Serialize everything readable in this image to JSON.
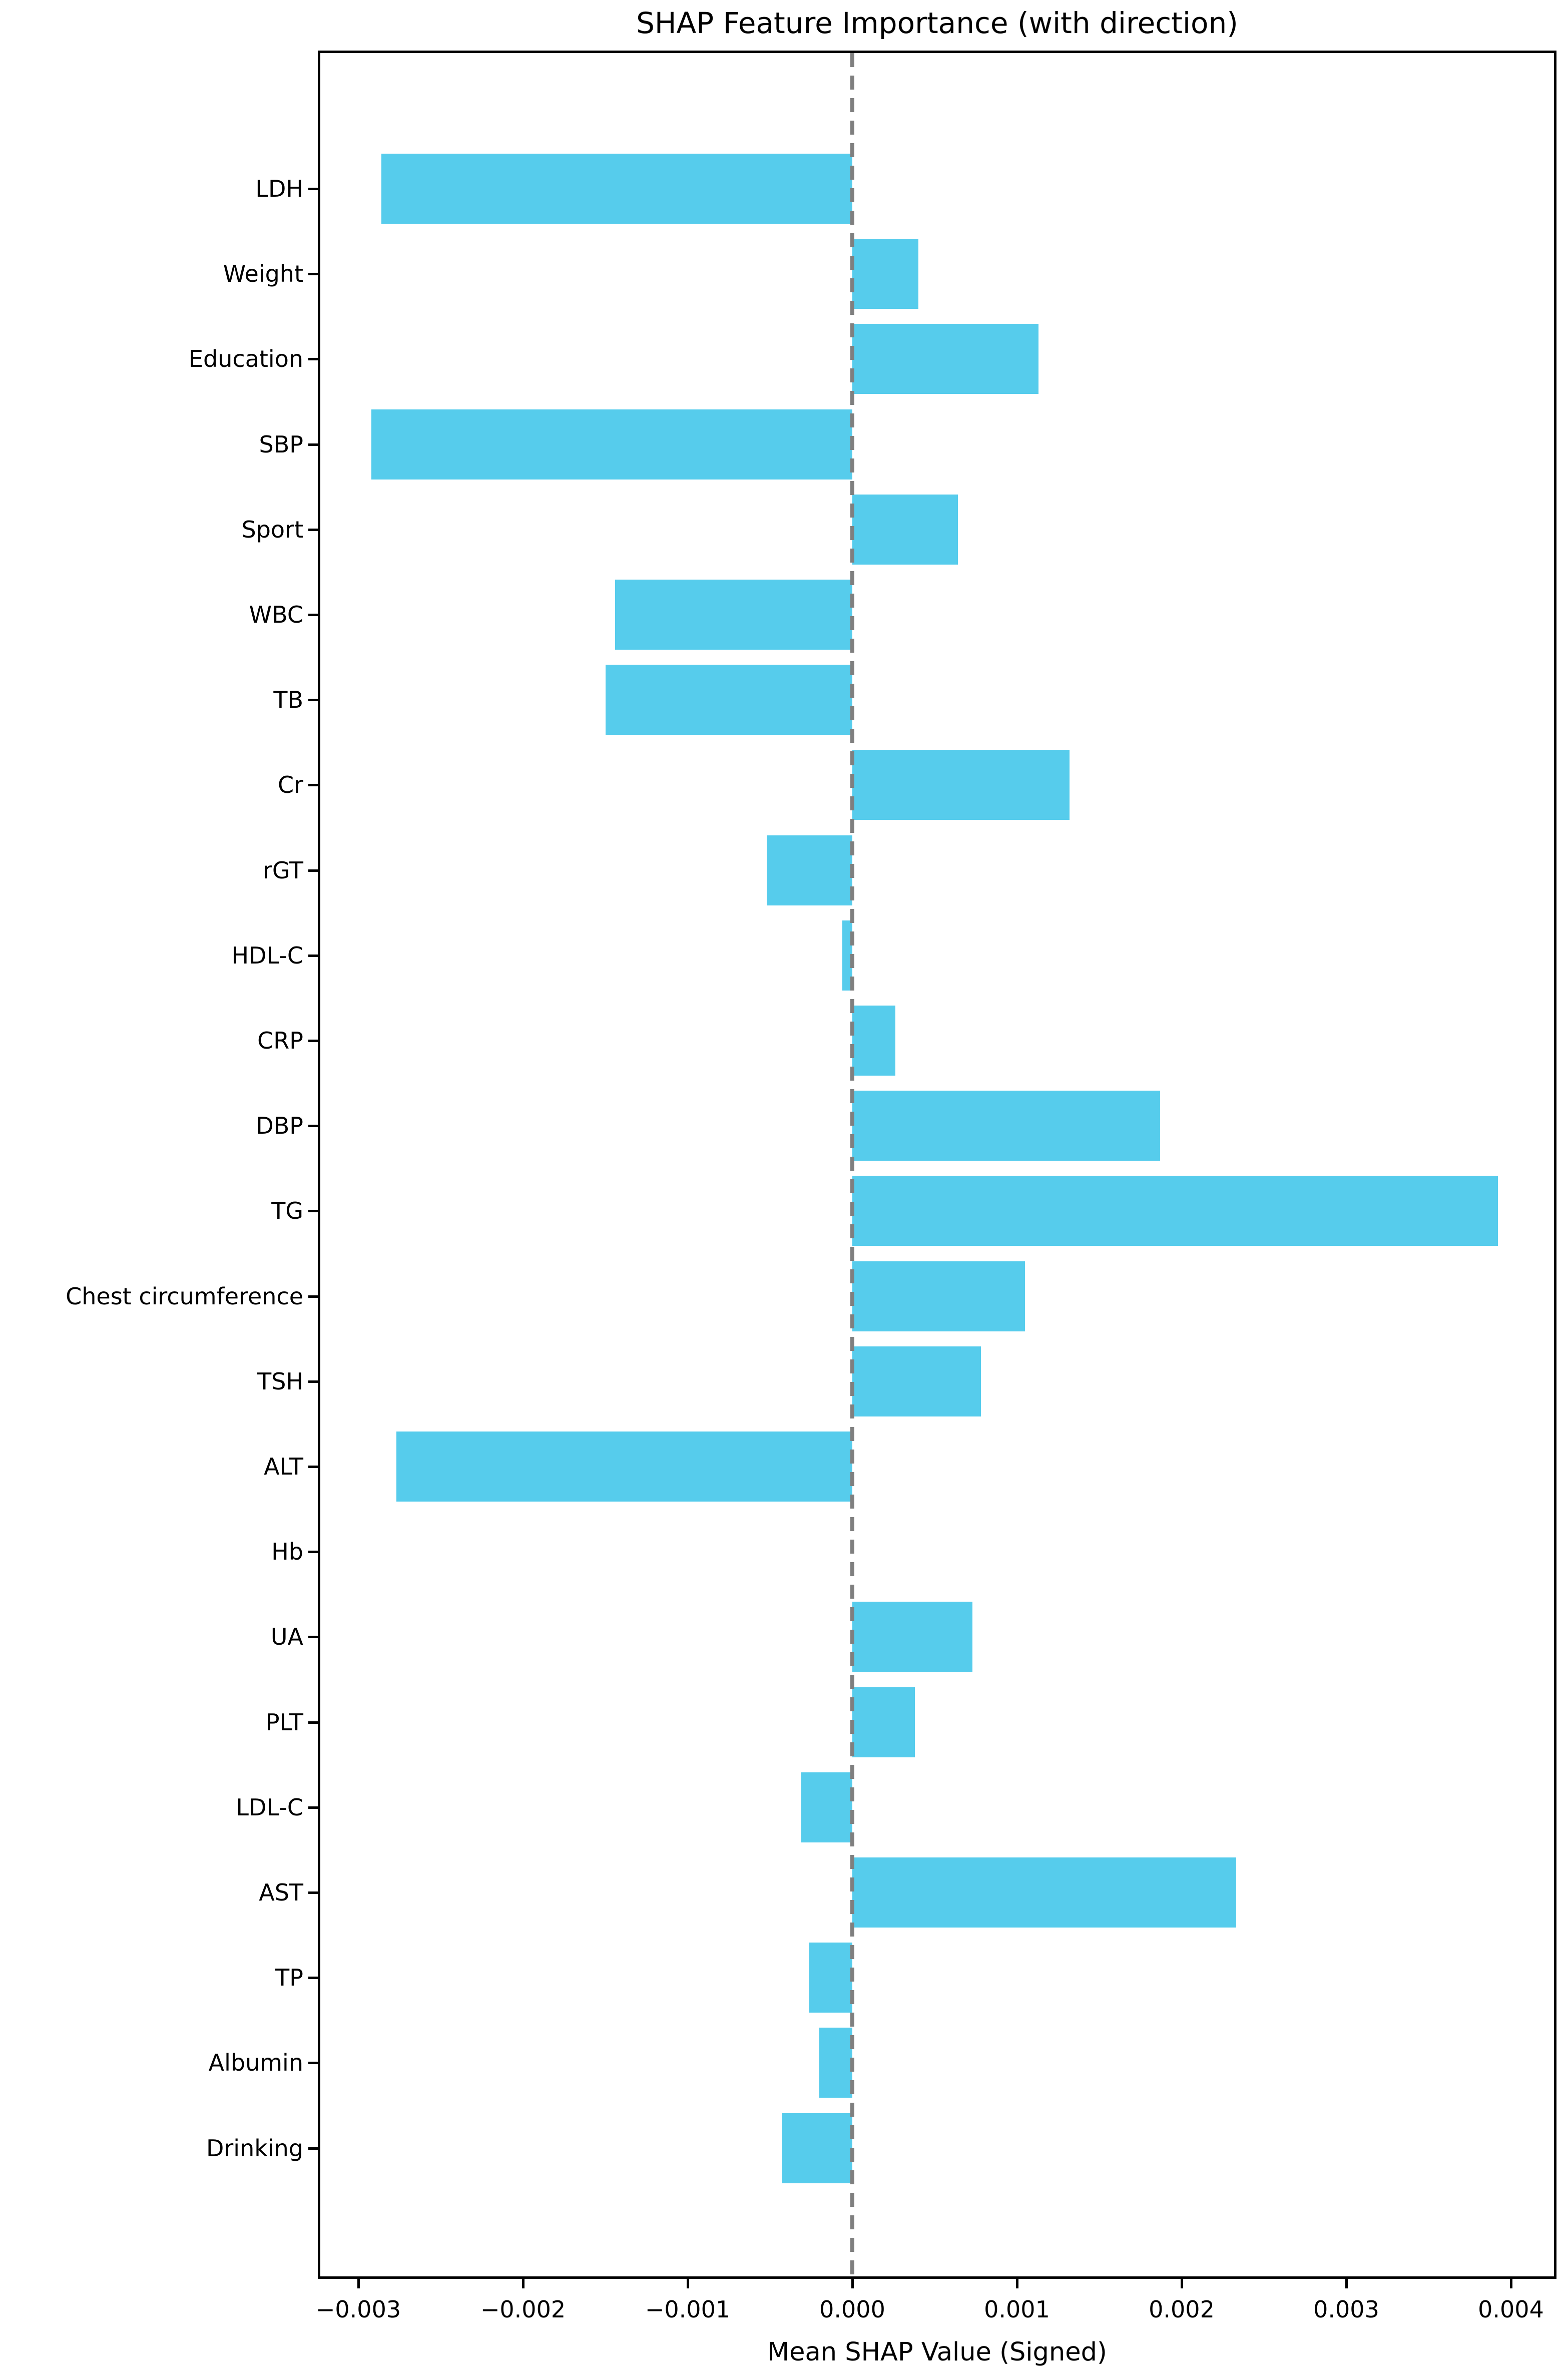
{
  "title": "SHAP Feature Importance (with direction)",
  "xlabel": "Mean SHAP Value (Signed)",
  "colors": {
    "bar": "#56CCEC",
    "zero_line": "#7f7f7f",
    "spine": "#000000",
    "text": "#000000",
    "background": "#ffffff"
  },
  "chart_data": {
    "type": "bar",
    "orientation": "horizontal",
    "title": "SHAP Feature Importance (with direction)",
    "xlabel": "Mean SHAP Value (Signed)",
    "ylabel": "",
    "categories": [
      "LDH",
      "Weight",
      "Education",
      "SBP",
      "Sport",
      "WBC",
      "TB",
      "Cr",
      "rGT",
      "HDL-C",
      "CRP",
      "DBP",
      "TG",
      "Chest circumference",
      "TSH",
      "ALT",
      "Hb",
      "UA",
      "PLT",
      "LDL-C",
      "AST",
      "TP",
      "Albumin",
      "Drinking"
    ],
    "values": [
      -0.00286,
      0.0004,
      0.00113,
      -0.00292,
      0.00064,
      -0.00144,
      -0.0015,
      0.00132,
      -0.00052,
      -6e-05,
      0.00026,
      0.00187,
      0.00392,
      0.00105,
      0.00078,
      -0.00277,
      0.0,
      0.00073,
      0.00038,
      -0.00031,
      0.00233,
      -0.00026,
      -0.0002,
      -0.00043
    ],
    "bar_color": "#56CCEC",
    "zero_line": {
      "x": 0.0,
      "style": "dashed",
      "color": "#7f7f7f"
    },
    "x_ticks": [
      -0.003,
      -0.002,
      -0.001,
      0.0,
      0.001,
      0.002,
      0.003,
      0.004
    ],
    "x_tick_labels": [
      "−0.003",
      "−0.002",
      "−0.001",
      "0.000",
      "0.001",
      "0.002",
      "0.003",
      "0.004"
    ],
    "xlim": [
      -0.00323,
      0.00426
    ],
    "grid": false,
    "legend": null
  }
}
